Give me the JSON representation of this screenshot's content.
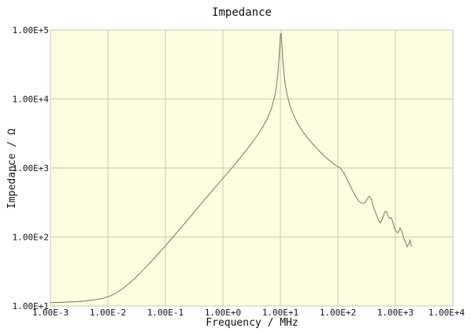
{
  "chart_data": {
    "type": "line",
    "title": "Impedance",
    "xlabel": "Frequency / MHz",
    "ylabel": "Impedance / Ω",
    "x_scale": "log",
    "y_scale": "log",
    "xlim": [
      0.001,
      10000
    ],
    "ylim": [
      10,
      100000
    ],
    "x_ticks": [
      0.001,
      0.01,
      0.1,
      1,
      10,
      100,
      1000,
      10000
    ],
    "x_tick_labels": [
      "1.00E-3",
      "1.00E-2",
      "1.00E-1",
      "1.00E+0",
      "1.00E+1",
      "1.00E+2",
      "1.00E+3",
      "1.00E+4"
    ],
    "y_ticks": [
      10,
      100,
      1000,
      10000,
      100000
    ],
    "y_tick_labels": [
      "1.00E+1",
      "1.00E+2",
      "1.00E+3",
      "1.00E+4",
      "1.00E+5"
    ],
    "grid": true,
    "colors": {
      "plot_background": "#fdfde0",
      "grid": "#c8c8b4",
      "line": "#6e7a5a",
      "frame": "#c8c8b4"
    },
    "series": [
      {
        "x": [
          0.001,
          0.0015,
          0.002,
          0.003,
          0.004,
          0.005,
          0.006,
          0.007,
          0.008,
          0.009,
          0.01,
          0.012,
          0.015,
          0.02,
          0.025,
          0.03,
          0.04,
          0.05,
          0.07,
          0.1,
          0.15,
          0.2,
          0.3,
          0.5,
          0.7,
          1,
          1.5,
          2,
          3,
          4,
          5,
          6,
          7,
          8,
          8.5,
          9,
          9.5,
          10,
          10.3,
          10.7,
          11,
          11.5,
          12,
          13,
          14,
          15,
          17,
          20,
          25,
          30,
          40,
          50,
          60,
          70,
          80,
          90,
          100,
          110,
          130,
          150,
          180,
          200,
          230,
          270,
          300,
          320,
          350,
          380,
          400,
          430,
          470,
          500,
          550,
          600,
          650,
          700,
          750,
          800,
          850,
          900,
          950,
          1000,
          1050,
          1100,
          1150,
          1200,
          1300,
          1400,
          1500,
          1550,
          1600,
          1700,
          1800,
          1900
        ],
        "y": [
          11.2,
          11.3,
          11.4,
          11.6,
          11.8,
          12.1,
          12.3,
          12.6,
          12.9,
          13.2,
          13.6,
          14.5,
          16.0,
          19.0,
          22.3,
          25.5,
          32.5,
          39.5,
          53.5,
          74.5,
          110,
          146,
          218,
          360,
          500,
          705,
          1050,
          1400,
          2150,
          3000,
          4000,
          5300,
          7300,
          11000,
          15000,
          22000,
          40000,
          85000,
          88000,
          55000,
          36000,
          24000,
          17500,
          11800,
          9200,
          7600,
          5800,
          4400,
          3300,
          2700,
          2050,
          1680,
          1450,
          1300,
          1180,
          1100,
          1050,
          1000,
          820,
          640,
          470,
          400,
          330,
          305,
          315,
          350,
          390,
          360,
          300,
          250,
          210,
          180,
          160,
          185,
          230,
          235,
          200,
          185,
          190,
          165,
          140,
          125,
          118,
          116,
          122,
          135,
          120,
          95,
          85,
          78,
          72,
          78,
          90,
          72
        ]
      }
    ]
  }
}
